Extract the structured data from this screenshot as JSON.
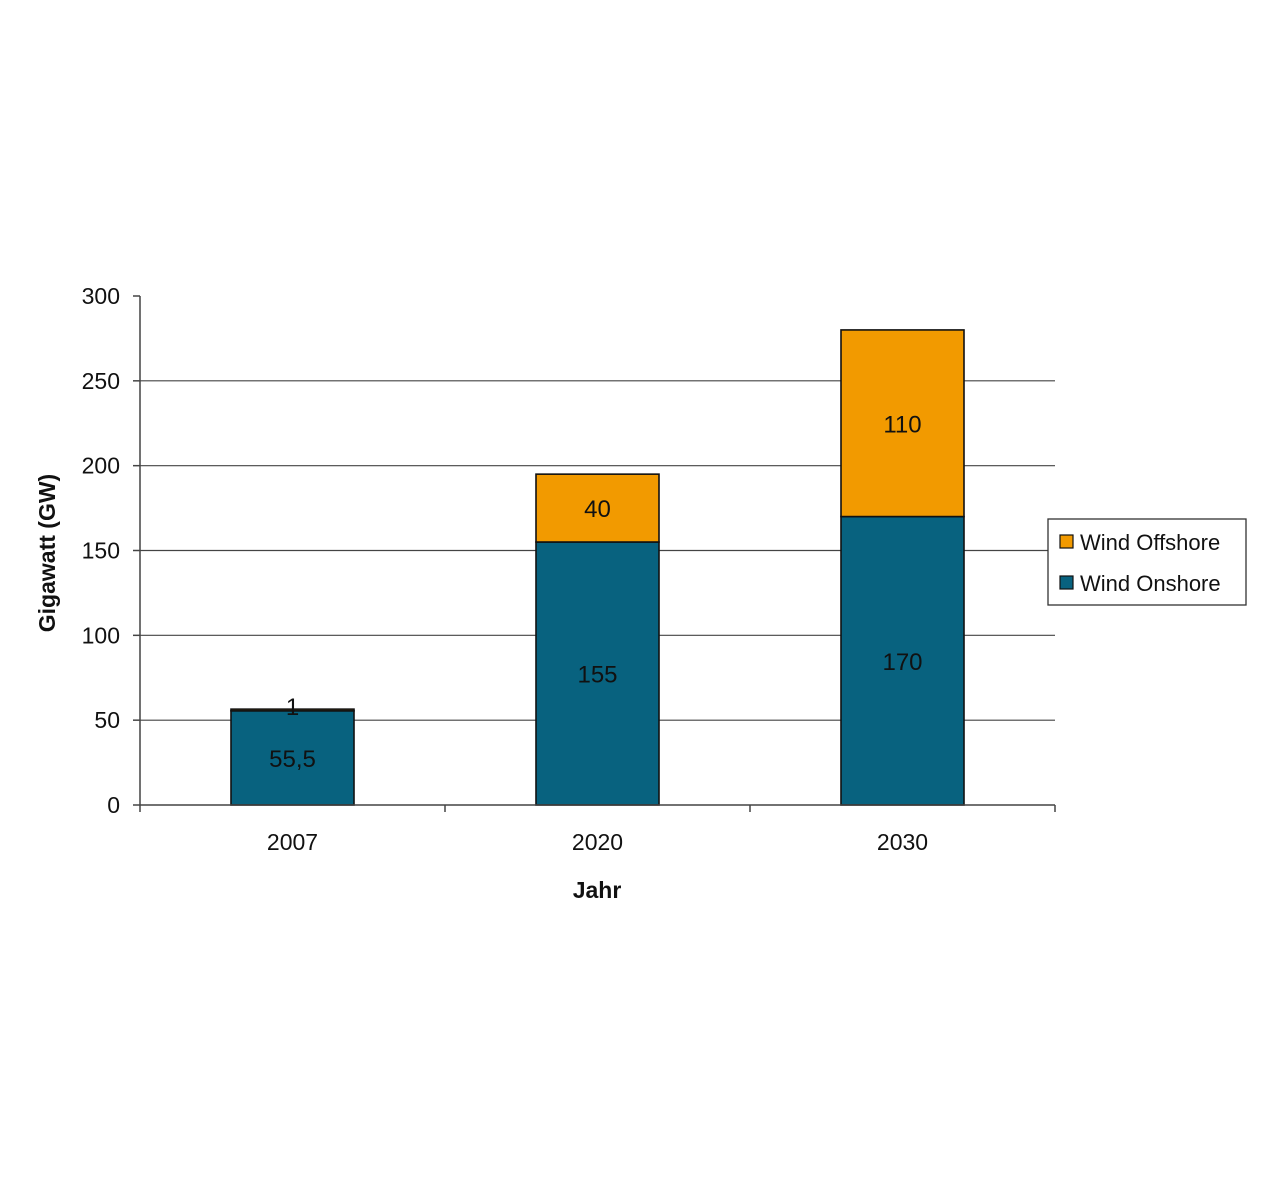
{
  "chart_data": {
    "type": "bar",
    "stacked": true,
    "categories": [
      "2007",
      "2020",
      "2030"
    ],
    "series": [
      {
        "name": "Wind Onshore",
        "values": [
          55.5,
          155,
          170
        ],
        "labels": [
          "55,5",
          "155",
          "170"
        ],
        "color": "#08627f"
      },
      {
        "name": "Wind Offshore",
        "values": [
          1,
          40,
          110
        ],
        "labels": [
          "1",
          "40",
          "110"
        ],
        "color": "#f29a00"
      }
    ],
    "xlabel": "Jahr",
    "ylabel": "Gigawatt (GW)",
    "ylim": [
      0,
      300
    ],
    "yticks": [
      0,
      50,
      100,
      150,
      200,
      250,
      300
    ],
    "grid": true,
    "legend_position": "right",
    "legend_order": [
      "Wind Offshore",
      "Wind Onshore"
    ]
  }
}
